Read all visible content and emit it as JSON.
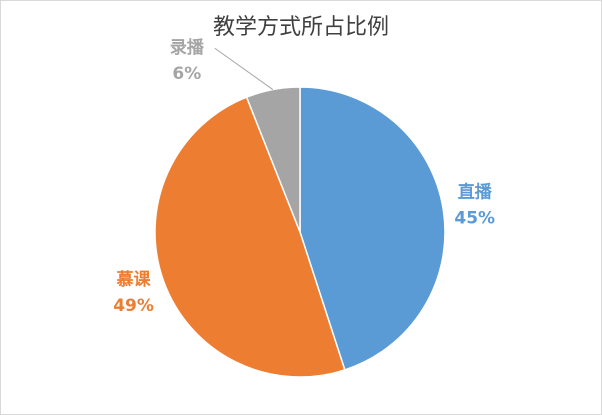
{
  "chart_data": {
    "type": "pie",
    "title": "教学方式所占比例",
    "categories": [
      "直播",
      "慕课",
      "录播"
    ],
    "values": [
      45,
      49,
      6
    ],
    "value_labels": [
      "45%",
      "49%",
      "6%"
    ],
    "colors": [
      "#5b9bd5",
      "#ed7d31",
      "#a5a5a5"
    ]
  }
}
